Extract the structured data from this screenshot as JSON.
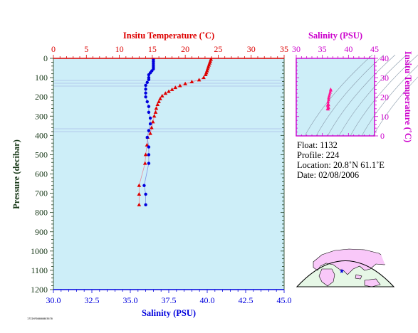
{
  "colors": {
    "temperature": "#dd0000",
    "salinity": "#0000dd",
    "inset_axes": "#cc00cc",
    "pressure_axis": "#1a3a1a",
    "plot_bg": "#cdeef8",
    "map_land": "#f9c8f9",
    "map_ocean": "#e6f7e6"
  },
  "info": {
    "float": "Float:  1132",
    "profile": "Profile:  224",
    "location": "Location:  20.8˚N  61.1˚E",
    "date": "Date:  02/08/2006"
  },
  "stamp": "1732HF00000003670",
  "map": {
    "marker": "float-position-star"
  },
  "chart_data": [
    {
      "type": "line",
      "title": "",
      "top_xlabel": "Insitu Temperature (˚C)",
      "bottom_xlabel": "Salinity (PSU)",
      "ylabel": "Pressure (decibar)",
      "temperature_xlim": [
        0,
        35
      ],
      "temperature_ticks": [
        "0",
        "5",
        "10",
        "15",
        "20",
        "25",
        "30",
        "35"
      ],
      "salinity_xlim": [
        30,
        45
      ],
      "salinity_ticks": [
        "30.0",
        "32.5",
        "35.0",
        "37.5",
        "40.0",
        "42.5",
        "45.0"
      ],
      "ylim": [
        1200,
        0
      ],
      "y_ticks": [
        "0",
        "100",
        "200",
        "300",
        "400",
        "500",
        "600",
        "700",
        "800",
        "900",
        "1000",
        "1100",
        "1200"
      ],
      "grid": false,
      "series": [
        {
          "name": "Insitu Temperature (˚C)",
          "axis": "top",
          "marker": "triangle",
          "points": [
            [
              23.9,
              5
            ],
            [
              23.8,
              15
            ],
            [
              23.7,
              25
            ],
            [
              23.6,
              35
            ],
            [
              23.5,
              45
            ],
            [
              23.4,
              55
            ],
            [
              23.3,
              65
            ],
            [
              23.2,
              75
            ],
            [
              23.1,
              85
            ],
            [
              22.8,
              100
            ],
            [
              22.1,
              112
            ],
            [
              21.0,
              122
            ],
            [
              20.0,
              132
            ],
            [
              19.2,
              142
            ],
            [
              18.5,
              152
            ],
            [
              18.0,
              162
            ],
            [
              17.5,
              172
            ],
            [
              17.0,
              182
            ],
            [
              16.5,
              195
            ],
            [
              16.2,
              210
            ],
            [
              16.0,
              225
            ],
            [
              15.8,
              240
            ],
            [
              15.6,
              260
            ],
            [
              15.5,
              280
            ],
            [
              15.3,
              300
            ],
            [
              15.1,
              330
            ],
            [
              14.9,
              360
            ],
            [
              14.7,
              390
            ],
            [
              14.3,
              410
            ],
            [
              14.2,
              450
            ],
            [
              14.0,
              500
            ],
            [
              13.9,
              545
            ],
            [
              13.0,
              660
            ],
            [
              13.0,
              705
            ],
            [
              13.0,
              760
            ]
          ]
        },
        {
          "name": "Salinity (PSU)",
          "axis": "bottom",
          "marker": "circle",
          "points": [
            [
              36.5,
              5
            ],
            [
              36.5,
              15
            ],
            [
              36.5,
              25
            ],
            [
              36.5,
              35
            ],
            [
              36.5,
              45
            ],
            [
              36.5,
              55
            ],
            [
              36.4,
              65
            ],
            [
              36.3,
              75
            ],
            [
              36.2,
              85
            ],
            [
              36.2,
              100
            ],
            [
              36.2,
              110
            ],
            [
              36.1,
              125
            ],
            [
              36.0,
              140
            ],
            [
              36.0,
              160
            ],
            [
              36.0,
              180
            ],
            [
              36.0,
              200
            ],
            [
              36.1,
              225
            ],
            [
              36.2,
              250
            ],
            [
              36.2,
              280
            ],
            [
              36.3,
              310
            ],
            [
              36.3,
              340
            ],
            [
              36.2,
              375
            ],
            [
              36.1,
              410
            ],
            [
              36.2,
              460
            ],
            [
              36.2,
              500
            ],
            [
              36.2,
              545
            ],
            [
              35.9,
              660
            ],
            [
              36.0,
              705
            ],
            [
              36.0,
              760
            ]
          ]
        }
      ]
    },
    {
      "type": "scatter",
      "title": "",
      "top_xlabel": "Salinity (PSU)",
      "right_ylabel": "Insitu Temperature (˚C)",
      "xlim": [
        30,
        45
      ],
      "x_ticks": [
        "30",
        "35",
        "40",
        "45"
      ],
      "ylim": [
        0,
        40
      ],
      "y_ticks": [
        "0",
        "10",
        "20",
        "30",
        "40"
      ],
      "points": [
        [
          36.6,
          24.0
        ],
        [
          36.6,
          23.5
        ],
        [
          36.5,
          22.5
        ],
        [
          36.4,
          21.5
        ],
        [
          36.3,
          20.5
        ],
        [
          36.2,
          19.5
        ],
        [
          36.2,
          18.5
        ],
        [
          36.1,
          17.5
        ],
        [
          36.1,
          16.5
        ],
        [
          36.0,
          15.8
        ],
        [
          36.1,
          15.0
        ],
        [
          36.2,
          14.5
        ],
        [
          36.0,
          14.0
        ],
        [
          36.1,
          13.8
        ],
        [
          36.2,
          16.0
        ]
      ]
    }
  ]
}
